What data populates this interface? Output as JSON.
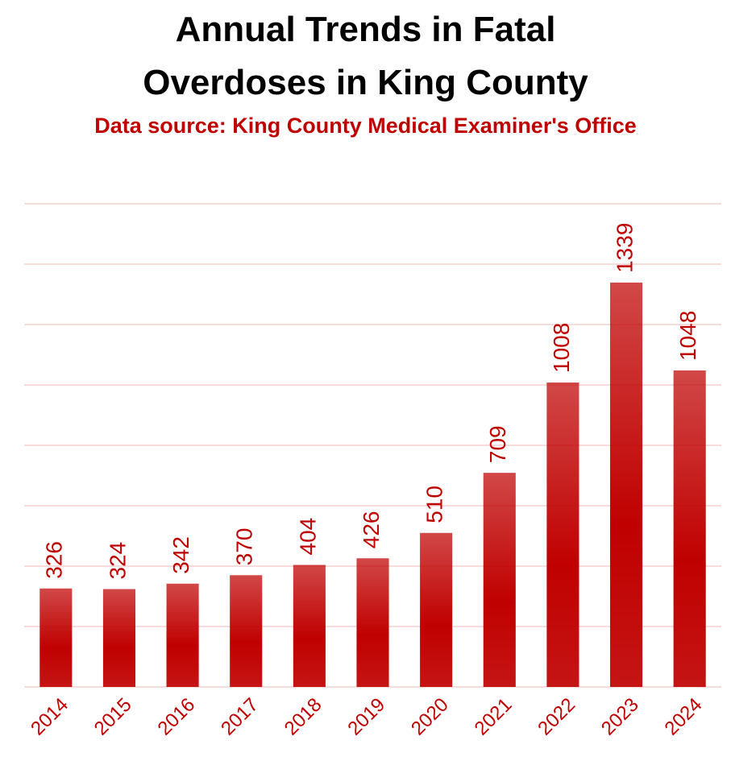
{
  "chart_data": {
    "type": "bar",
    "title": "Annual Trends in Fatal Overdoses in King County",
    "subtitle": "Data source: King County Medical Examiner's Office",
    "categories": [
      "2014",
      "2015",
      "2016",
      "2017",
      "2018",
      "2019",
      "2020",
      "2021",
      "2022",
      "2023",
      "2024"
    ],
    "values": [
      326,
      324,
      342,
      370,
      404,
      426,
      510,
      709,
      1008,
      1339,
      1048
    ],
    "color": "#c00000",
    "ylim": [
      0,
      1600
    ],
    "yticks": [
      0,
      200,
      400,
      600,
      800,
      1000,
      1200,
      1400,
      1600
    ],
    "grid": true
  }
}
